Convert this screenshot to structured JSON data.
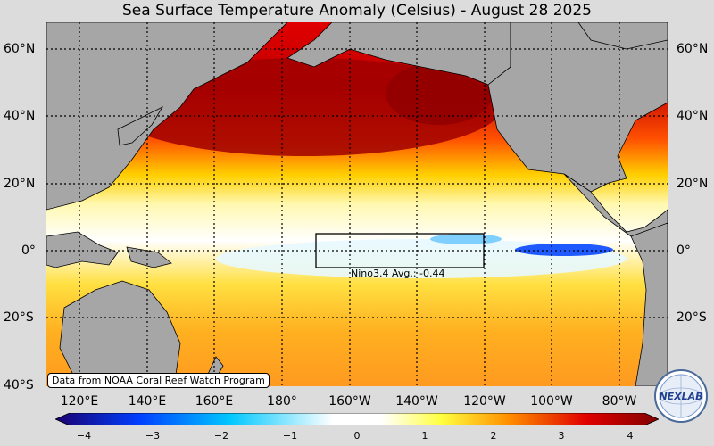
{
  "title": "Sea Surface Temperature Anomaly (Celsius) - August 28 2025",
  "lat_labels": [
    "60°N",
    "40°N",
    "20°N",
    "0°",
    "20°S",
    "40°S"
  ],
  "lon_labels": [
    "120°E",
    "140°E",
    "160°E",
    "180°",
    "160°W",
    "140°W",
    "120°W",
    "100°W",
    "80°W"
  ],
  "colorbar": {
    "ticks": [
      "−4",
      "−3",
      "−2",
      "−1",
      "0",
      "1",
      "2",
      "3",
      "4"
    ],
    "range": [
      -4,
      4
    ],
    "colors": [
      "#1a0070",
      "#0040ff",
      "#00c8ff",
      "#ffffff",
      "#ffff40",
      "#ff9000",
      "#e00000",
      "#800000"
    ]
  },
  "nino_box": {
    "label": "Nino3.4 Avg.: -0.44",
    "lon_range": [
      "170°W",
      "120°W"
    ],
    "lat_range": [
      "5°S",
      "5°N"
    ]
  },
  "credit": "Data from NOAA Coral Reef Watch Program",
  "logo_text": "NEXLAB",
  "colors": {
    "land": "#a6a6a6",
    "background": "#dcdcdc"
  }
}
